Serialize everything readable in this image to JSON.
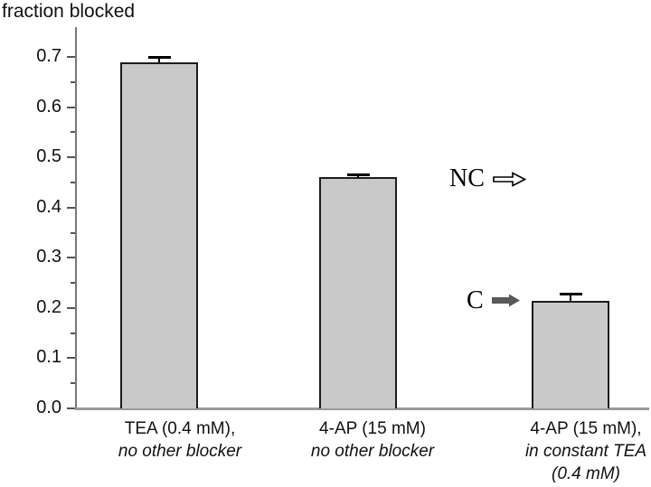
{
  "chart_data": {
    "type": "bar",
    "title": "fraction blocked",
    "xlabel": "",
    "ylabel": "fraction blocked",
    "ylim": [
      0.0,
      0.7
    ],
    "ytick_labels": [
      "0.0",
      "0.1",
      "0.2",
      "0.3",
      "0.4",
      "0.5",
      "0.6",
      "0.7"
    ],
    "minor_tick_step": 0.05,
    "grid": false,
    "legend": "none",
    "bar_fill": "#c9c9c9",
    "bar_border": "#1c1c1c",
    "axis_color": "#777777",
    "baseline_color": "#999999",
    "error_color": "#000000",
    "categories": [
      {
        "lines": [
          {
            "text": "TEA (0.4 mM),",
            "italic": false
          },
          {
            "text": "no other blocker",
            "italic": true
          }
        ]
      },
      {
        "lines": [
          {
            "text": "4-AP (15 mM)",
            "italic": false
          },
          {
            "text": "no other blocker",
            "italic": true
          }
        ]
      },
      {
        "lines": [
          {
            "text": "4-AP (15 mM),",
            "italic": false
          },
          {
            "text": "in constant TEA",
            "italic": true
          },
          {
            "text": "(0.4 mM)",
            "italic": true
          }
        ]
      }
    ],
    "values": [
      0.69,
      0.46,
      0.215
    ],
    "errors": [
      0.01,
      0.005,
      0.012
    ],
    "annotations": [
      {
        "label": "NC",
        "arrow": "outline",
        "value": 0.457,
        "fill": "#ffffff",
        "stroke": "#000000"
      },
      {
        "label": "C",
        "arrow": "filled",
        "value": 0.215,
        "fill": "#595959",
        "stroke": "#595959"
      }
    ]
  }
}
